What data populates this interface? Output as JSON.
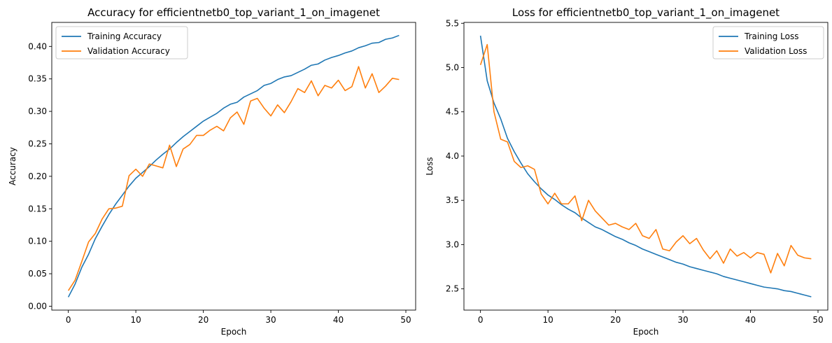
{
  "chart_data": [
    {
      "type": "line",
      "title": "Accuracy for efficientnetb0_top_variant_1_on_imagenet",
      "xlabel": "Epoch",
      "ylabel": "Accuracy",
      "xlim": [
        -2.45,
        51.45
      ],
      "ylim": [
        -0.006,
        0.437
      ],
      "xticks": [
        0,
        10,
        20,
        30,
        40,
        50
      ],
      "yticks": [
        0.0,
        0.05,
        0.1,
        0.15,
        0.2,
        0.25,
        0.3,
        0.35,
        0.4
      ],
      "xtick_labels": [
        "0",
        "10",
        "20",
        "30",
        "40",
        "50"
      ],
      "ytick_labels": [
        "0.00",
        "0.05",
        "0.10",
        "0.15",
        "0.20",
        "0.25",
        "0.30",
        "0.35",
        "0.40"
      ],
      "legend_position": "upper-left",
      "grid": false,
      "x": [
        0,
        1,
        2,
        3,
        4,
        5,
        6,
        7,
        8,
        9,
        10,
        11,
        12,
        13,
        14,
        15,
        16,
        17,
        18,
        19,
        20,
        21,
        22,
        23,
        24,
        25,
        26,
        27,
        28,
        29,
        30,
        31,
        32,
        33,
        34,
        35,
        36,
        37,
        38,
        39,
        40,
        41,
        42,
        43,
        44,
        45,
        46,
        47,
        48,
        49
      ],
      "series": [
        {
          "name": "Training Accuracy",
          "color": "#1f77b4",
          "values": [
            0.014,
            0.034,
            0.06,
            0.08,
            0.104,
            0.123,
            0.141,
            0.157,
            0.171,
            0.185,
            0.197,
            0.206,
            0.215,
            0.225,
            0.234,
            0.242,
            0.252,
            0.261,
            0.269,
            0.277,
            0.285,
            0.291,
            0.297,
            0.305,
            0.311,
            0.314,
            0.322,
            0.327,
            0.332,
            0.34,
            0.343,
            0.349,
            0.353,
            0.355,
            0.36,
            0.365,
            0.371,
            0.373,
            0.379,
            0.383,
            0.386,
            0.39,
            0.393,
            0.398,
            0.401,
            0.405,
            0.406,
            0.411,
            0.413,
            0.417
          ]
        },
        {
          "name": "Validation Accuracy",
          "color": "#ff7f0e",
          "values": [
            0.024,
            0.04,
            0.069,
            0.099,
            0.112,
            0.134,
            0.15,
            0.151,
            0.154,
            0.201,
            0.211,
            0.2,
            0.219,
            0.216,
            0.213,
            0.248,
            0.215,
            0.242,
            0.249,
            0.263,
            0.263,
            0.271,
            0.277,
            0.27,
            0.29,
            0.299,
            0.28,
            0.316,
            0.32,
            0.305,
            0.293,
            0.31,
            0.298,
            0.315,
            0.335,
            0.329,
            0.347,
            0.324,
            0.34,
            0.336,
            0.348,
            0.332,
            0.338,
            0.369,
            0.336,
            0.358,
            0.329,
            0.339,
            0.351,
            0.349
          ]
        }
      ]
    },
    {
      "type": "line",
      "title": "Loss for efficientnetb0_top_variant_1_on_imagenet",
      "xlabel": "Epoch",
      "ylabel": "Loss",
      "xlim": [
        -2.45,
        51.45
      ],
      "ylim": [
        2.26,
        5.51
      ],
      "xticks": [
        0,
        10,
        20,
        30,
        40,
        50
      ],
      "yticks": [
        2.5,
        3.0,
        3.5,
        4.0,
        4.5,
        5.0,
        5.5
      ],
      "xtick_labels": [
        "0",
        "10",
        "20",
        "30",
        "40",
        "50"
      ],
      "ytick_labels": [
        "2.5",
        "3.0",
        "3.5",
        "4.0",
        "4.5",
        "5.0",
        "5.5"
      ],
      "legend_position": "upper-right",
      "grid": false,
      "x": [
        0,
        1,
        2,
        3,
        4,
        5,
        6,
        7,
        8,
        9,
        10,
        11,
        12,
        13,
        14,
        15,
        16,
        17,
        18,
        19,
        20,
        21,
        22,
        23,
        24,
        25,
        26,
        27,
        28,
        29,
        30,
        31,
        32,
        33,
        34,
        35,
        36,
        37,
        38,
        39,
        40,
        41,
        42,
        43,
        44,
        45,
        46,
        47,
        48,
        49
      ],
      "series": [
        {
          "name": "Training Loss",
          "color": "#1f77b4",
          "values": [
            5.36,
            4.85,
            4.6,
            4.42,
            4.2,
            4.05,
            3.92,
            3.8,
            3.71,
            3.63,
            3.56,
            3.51,
            3.45,
            3.4,
            3.36,
            3.3,
            3.25,
            3.2,
            3.17,
            3.13,
            3.09,
            3.06,
            3.02,
            2.99,
            2.95,
            2.92,
            2.89,
            2.86,
            2.83,
            2.8,
            2.78,
            2.75,
            2.73,
            2.71,
            2.69,
            2.67,
            2.64,
            2.62,
            2.6,
            2.58,
            2.56,
            2.54,
            2.52,
            2.51,
            2.5,
            2.48,
            2.47,
            2.45,
            2.43,
            2.41
          ]
        },
        {
          "name": "Validation Loss",
          "color": "#ff7f0e",
          "values": [
            5.03,
            5.26,
            4.5,
            4.19,
            4.16,
            3.94,
            3.87,
            3.89,
            3.85,
            3.57,
            3.46,
            3.58,
            3.46,
            3.46,
            3.55,
            3.27,
            3.5,
            3.38,
            3.3,
            3.22,
            3.24,
            3.2,
            3.17,
            3.24,
            3.1,
            3.07,
            3.17,
            2.95,
            2.93,
            3.03,
            3.1,
            3.01,
            3.07,
            2.94,
            2.84,
            2.93,
            2.79,
            2.95,
            2.87,
            2.91,
            2.85,
            2.91,
            2.89,
            2.68,
            2.9,
            2.76,
            2.99,
            2.88,
            2.85,
            2.84
          ]
        }
      ]
    }
  ]
}
